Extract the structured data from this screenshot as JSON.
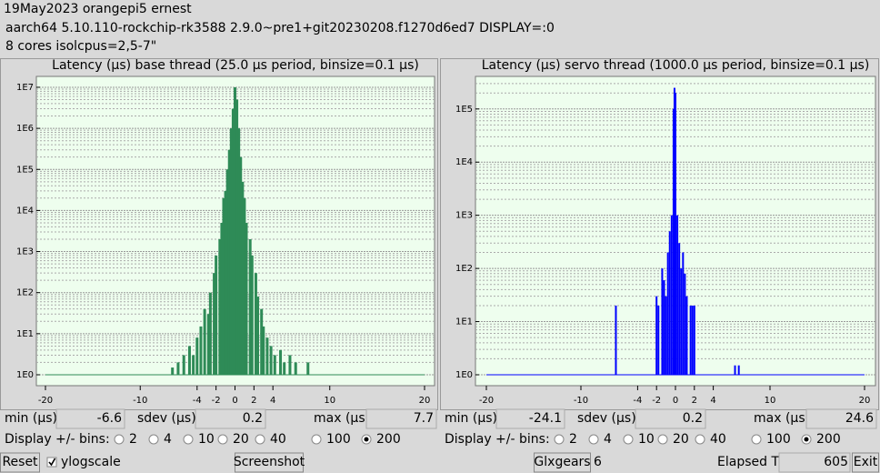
{
  "header": {
    "title": "19May2023 orangepi5 ernest",
    "system": "aarch64  5.10.110-rockchip-rk3588  2.9.0~pre1+git20230208.f1270d6ed7  DISPLAY=:0",
    "cpus": "8 cores  isolcpus=2,5-7\""
  },
  "chart_data": [
    {
      "type": "bar",
      "title": "Latency (µs) base thread (25.0 µs period, binsize=0.1 µs)",
      "x": [
        -6.6,
        -6.0,
        -5.4,
        -4.8,
        -4.4,
        -4.0,
        -3.6,
        -3.2,
        -2.8,
        -2.6,
        -2.2,
        -2.0,
        -1.6,
        -1.4,
        -1.2,
        -1.0,
        -0.8,
        -0.6,
        -0.4,
        -0.2,
        0,
        0.2,
        0.4,
        0.6,
        0.8,
        1.0,
        1.2,
        1.6,
        1.8,
        2.2,
        2.4,
        2.8,
        3.0,
        3.4,
        3.8,
        4.2,
        4.8,
        5.2,
        5.8,
        6.4,
        7.7
      ],
      "values": [
        1.5,
        2,
        3,
        5,
        3,
        8,
        15,
        40,
        30,
        100,
        300,
        800,
        2000,
        5000,
        20000,
        30000,
        100000,
        300000,
        1000000,
        3000000,
        10000000,
        5000000,
        1000000,
        200000,
        50000,
        20000,
        5000,
        2000,
        800,
        300,
        80,
        40,
        15,
        8,
        5,
        3,
        4,
        2,
        3,
        2,
        2
      ],
      "color": "#2e8b57",
      "xlim": [
        -20,
        20
      ],
      "xticks": [
        -20,
        -10,
        -4,
        -2,
        0,
        2,
        4,
        10,
        20
      ],
      "ylim": [
        1,
        15000000
      ],
      "log_y": true,
      "grid": true,
      "yticks": [
        {
          "value": 1,
          "label": "1E0"
        },
        {
          "value": 10,
          "label": "1E1"
        },
        {
          "value": 100,
          "label": "1E2"
        },
        {
          "value": 1000,
          "label": "1E3"
        },
        {
          "value": 10000,
          "label": "1E4"
        },
        {
          "value": 100000,
          "label": "1E5"
        },
        {
          "value": 1000000,
          "label": "1E6"
        },
        {
          "value": 10000000,
          "label": "1E7"
        }
      ]
    },
    {
      "type": "bar",
      "title": "Latency (µs) servo thread (1000.0 µs period, binsize=0.1 µs)",
      "x": [
        -6.3,
        -2.0,
        -1.8,
        -1.4,
        -1.2,
        -1.0,
        -0.8,
        -0.6,
        -0.4,
        -0.2,
        -0.1,
        0,
        0.2,
        0.4,
        0.6,
        0.8,
        1.0,
        1.2,
        1.6,
        1.8,
        2.0,
        6.3,
        6.7
      ],
      "values": [
        20,
        30,
        20,
        100,
        60,
        30,
        200,
        500,
        1000,
        100000,
        250000,
        200000,
        1000,
        300,
        100,
        200,
        80,
        30,
        20,
        20,
        20,
        1.5,
        1.5
      ],
      "color": "#0000ff",
      "xlim": [
        -20,
        20
      ],
      "xticks": [
        -20,
        -10,
        -4,
        -2,
        0,
        2,
        4,
        10,
        20
      ],
      "ylim": [
        1,
        350000
      ],
      "log_y": true,
      "grid": true,
      "yticks": [
        {
          "value": 1,
          "label": "1E0"
        },
        {
          "value": 10,
          "label": "1E1"
        },
        {
          "value": 100,
          "label": "1E2"
        },
        {
          "value": 1000,
          "label": "1E3"
        },
        {
          "value": 10000,
          "label": "1E4"
        },
        {
          "value": 100000,
          "label": "1E5"
        }
      ]
    }
  ],
  "panels": [
    {
      "min_label": "min (µs)",
      "min": -6.6,
      "sdev_label": "sdev (µs)",
      "sdev": 0.2,
      "max_label": "max (µs)",
      "max": 7.7,
      "bins_label": "Display +/- bins:",
      "bins_options": [
        2,
        4,
        10,
        20,
        40,
        100,
        200
      ],
      "bins_selected": 200
    },
    {
      "min_label": "min (µs)",
      "min": -24.1,
      "sdev_label": "sdev (µs)",
      "sdev": 0.2,
      "max_label": "max (µs)",
      "max": 24.6,
      "bins_label": "Display +/- bins:",
      "bins_options": [
        2,
        4,
        10,
        20,
        40,
        100,
        200
      ],
      "bins_selected": 200
    }
  ],
  "controls": {
    "reset": "Reset",
    "ylogscale": "ylogscale",
    "ylogscale_checked": true,
    "screenshot": "Screenshot",
    "glxgears": "Glxgears",
    "glxgears_count": 6,
    "elapsed_label": "Elapsed Time:",
    "elapsed": 605,
    "exit": "Exit"
  }
}
